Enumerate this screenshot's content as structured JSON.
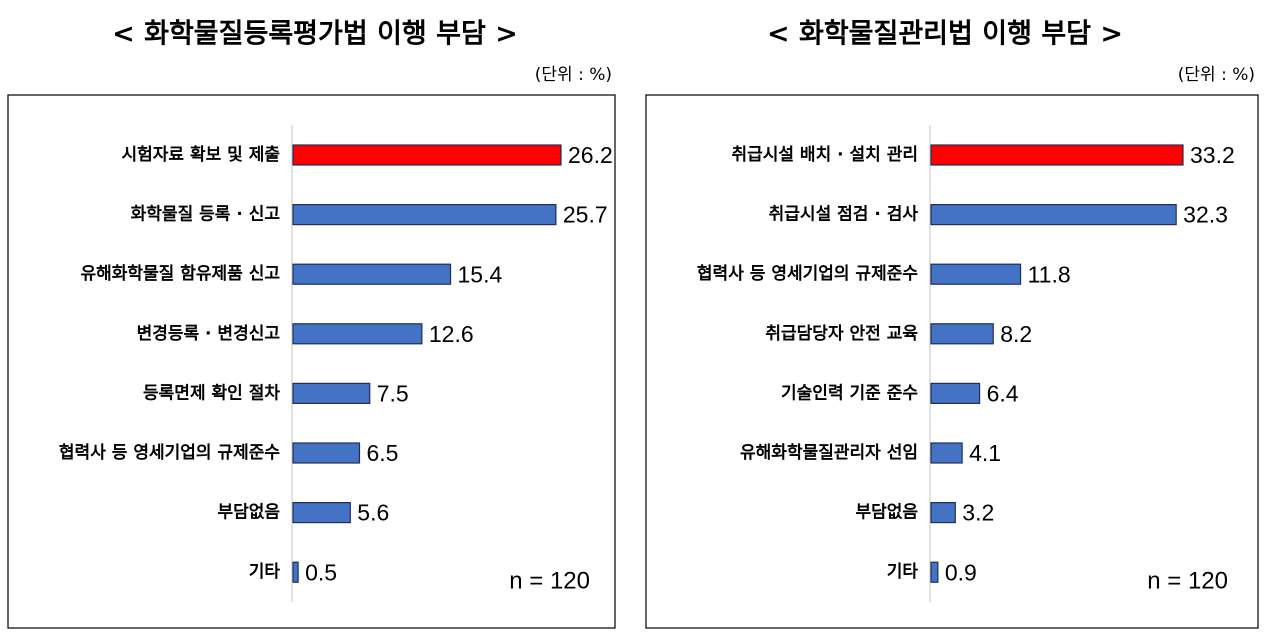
{
  "chart_data": [
    {
      "type": "bar",
      "title": "< 화학물질등록평가법 이행 부담 >",
      "unit": "(단위 : %)",
      "note": "n = 120",
      "categories": [
        "시험자료 확보 및 제출",
        "화학물질 등록 · 신고",
        "유해화학물질 함유제품 신고",
        "변경등록 · 변경신고",
        "등록면제 확인 절차",
        "협력사 등 영세기업의 규제준수",
        "부담없음",
        "기타"
      ],
      "values": [
        26.2,
        25.7,
        15.4,
        12.6,
        7.5,
        6.5,
        5.6,
        0.5
      ],
      "colors": [
        "#ff0000",
        "#4472c4",
        "#4472c4",
        "#4472c4",
        "#4472c4",
        "#4472c4",
        "#4472c4",
        "#4472c4"
      ]
    },
    {
      "type": "bar",
      "title": "< 화학물질관리법 이행 부담 >",
      "unit": "(단위 : %)",
      "note": "n = 120",
      "categories": [
        "취급시설 배치 · 설치 관리",
        "취급시설 점검 · 검사",
        "협력사 등 영세기업의 규제준수",
        "취급담당자 안전 교육",
        "기술인력 기준 준수",
        "유해화학물질관리자 선임",
        "부담없음",
        "기타"
      ],
      "values": [
        33.2,
        32.3,
        11.8,
        8.2,
        6.4,
        4.1,
        3.2,
        0.9
      ],
      "colors": [
        "#ff0000",
        "#4472c4",
        "#4472c4",
        "#4472c4",
        "#4472c4",
        "#4472c4",
        "#4472c4",
        "#4472c4"
      ]
    }
  ]
}
